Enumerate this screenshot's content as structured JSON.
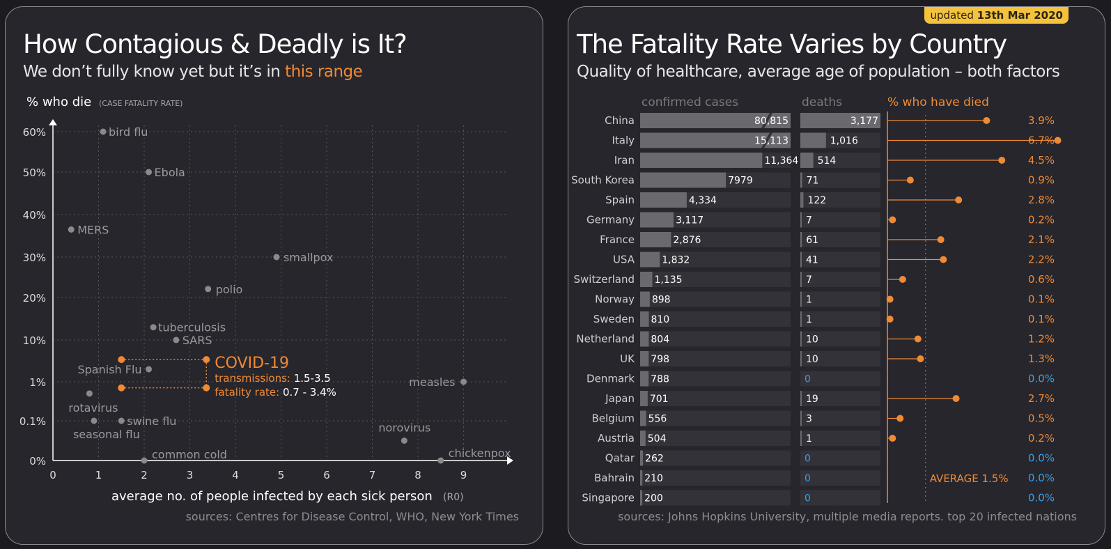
{
  "left": {
    "title": "How Contagious & Deadly is It?",
    "subtitle_prefix": "We don’t fully know yet but it’s in",
    "subtitle_highlight": "this range",
    "sources": "sources: Centres for Disease Control, WHO, New York Times"
  },
  "right": {
    "title": "The Fatality Rate Varies by Country",
    "subtitle": "Quality of healthcare, average age of population – both factors",
    "updated_prefix": "updated",
    "updated_date": "13th Mar 2020",
    "sources": "sources: Johns Hopkins University, multiple media reports. top 20 infected nations"
  },
  "colors": {
    "accent": "#ef8a35",
    "point": "#8a8a8a",
    "bar": "#6a6a6e",
    "bar_track": "#333238",
    "zero": "#3aa0e8",
    "grid": "#55555a"
  },
  "chart_data": [
    {
      "type": "scatter",
      "ylabel": "% who die",
      "ylabel_note": "(CASE FATALITY RATE)",
      "xlabel": "average no. of people infected by each sick person",
      "xlabel_note": "(R0)",
      "xlim": [
        0,
        10
      ],
      "x_ticks": [
        "0",
        "1",
        "2",
        "3",
        "4",
        "5",
        "6",
        "7",
        "8",
        "9"
      ],
      "y_ticks": [
        "0%",
        "0.1%",
        "1%",
        "10%",
        "20%",
        "30%",
        "40%",
        "50%",
        "60%"
      ],
      "grid": true,
      "points": [
        {
          "label": "bird flu",
          "x": 1.1,
          "y": "60%"
        },
        {
          "label": "Ebola",
          "x": 2.1,
          "y": "50%"
        },
        {
          "label": "MERS",
          "x": 0.4,
          "y": "36%"
        },
        {
          "label": "smallpox",
          "x": 4.9,
          "y": "30%"
        },
        {
          "label": "polio",
          "x": 3.4,
          "y": "22%"
        },
        {
          "label": "tuberculosis",
          "x": 2.2,
          "y": "13%"
        },
        {
          "label": "SARS",
          "x": 2.7,
          "y": "10%"
        },
        {
          "label": "Spanish Flu",
          "x": 2.1,
          "y": "2%"
        },
        {
          "label": "measles",
          "x": 9.0,
          "y": "1%"
        },
        {
          "label": "rotavirus",
          "x": 0.8,
          "y": "0.5%"
        },
        {
          "label": "seasonal flu",
          "x": 0.9,
          "y": "0.1%"
        },
        {
          "label": "swine flu",
          "x": 1.5,
          "y": "0.1%"
        },
        {
          "label": "norovirus",
          "x": 7.7,
          "y": "0.05%"
        },
        {
          "label": "common cold",
          "x": 2.0,
          "y": "0%"
        },
        {
          "label": "chickenpox",
          "x": 8.5,
          "y": "0%"
        }
      ],
      "covid": {
        "label": "COVID-19",
        "transmissions_label": "transmissions:",
        "transmissions": "1.5-3.5",
        "fatality_label": "fatality rate:",
        "fatality": "0.7 - 3.4%",
        "x_range": [
          1.5,
          3.5
        ],
        "y_range": [
          "0.7%",
          "3.4%"
        ]
      }
    },
    {
      "type": "bar",
      "columns": {
        "cases": "confirmed cases",
        "deaths": "deaths",
        "rate": "% who have died"
      },
      "average_label": "AVERAGE 1.5%",
      "average": 1.5,
      "rows": [
        {
          "country": "China",
          "cases": 80815,
          "cases_label": "80,815",
          "deaths": 3177,
          "deaths_label": "3,177",
          "rate": 3.9,
          "rate_label": "3.9%"
        },
        {
          "country": "Italy",
          "cases": 15113,
          "cases_label": "15,113",
          "deaths": 1016,
          "deaths_label": "1,016",
          "rate": 6.7,
          "rate_label": "6.7%"
        },
        {
          "country": "Iran",
          "cases": 11364,
          "cases_label": "11,364",
          "deaths": 514,
          "deaths_label": "514",
          "rate": 4.5,
          "rate_label": "4.5%"
        },
        {
          "country": "South Korea",
          "cases": 7979,
          "cases_label": "7979",
          "deaths": 71,
          "deaths_label": "71",
          "rate": 0.9,
          "rate_label": "0.9%"
        },
        {
          "country": "Spain",
          "cases": 4334,
          "cases_label": "4,334",
          "deaths": 122,
          "deaths_label": "122",
          "rate": 2.8,
          "rate_label": "2.8%"
        },
        {
          "country": "Germany",
          "cases": 3117,
          "cases_label": "3,117",
          "deaths": 7,
          "deaths_label": "7",
          "rate": 0.2,
          "rate_label": "0.2%"
        },
        {
          "country": "France",
          "cases": 2876,
          "cases_label": "2,876",
          "deaths": 61,
          "deaths_label": "61",
          "rate": 2.1,
          "rate_label": "2.1%"
        },
        {
          "country": "USA",
          "cases": 1832,
          "cases_label": "1,832",
          "deaths": 41,
          "deaths_label": "41",
          "rate": 2.2,
          "rate_label": "2.2%"
        },
        {
          "country": "Switzerland",
          "cases": 1135,
          "cases_label": "1,135",
          "deaths": 7,
          "deaths_label": "7",
          "rate": 0.6,
          "rate_label": "0.6%"
        },
        {
          "country": "Norway",
          "cases": 898,
          "cases_label": "898",
          "deaths": 1,
          "deaths_label": "1",
          "rate": 0.1,
          "rate_label": "0.1%"
        },
        {
          "country": "Sweden",
          "cases": 810,
          "cases_label": "810",
          "deaths": 1,
          "deaths_label": "1",
          "rate": 0.1,
          "rate_label": "0.1%"
        },
        {
          "country": "Netherland",
          "cases": 804,
          "cases_label": "804",
          "deaths": 10,
          "deaths_label": "10",
          "rate": 1.2,
          "rate_label": "1.2%"
        },
        {
          "country": "UK",
          "cases": 798,
          "cases_label": "798",
          "deaths": 10,
          "deaths_label": "10",
          "rate": 1.3,
          "rate_label": "1.3%"
        },
        {
          "country": "Denmark",
          "cases": 788,
          "cases_label": "788",
          "deaths": 0,
          "deaths_label": "0",
          "rate": 0.0,
          "rate_label": "0.0%"
        },
        {
          "country": "Japan",
          "cases": 701,
          "cases_label": "701",
          "deaths": 19,
          "deaths_label": "19",
          "rate": 2.7,
          "rate_label": "2.7%"
        },
        {
          "country": "Belgium",
          "cases": 556,
          "cases_label": "556",
          "deaths": 3,
          "deaths_label": "3",
          "rate": 0.5,
          "rate_label": "0.5%"
        },
        {
          "country": "Austria",
          "cases": 504,
          "cases_label": "504",
          "deaths": 1,
          "deaths_label": "1",
          "rate": 0.2,
          "rate_label": "0.2%"
        },
        {
          "country": "Qatar",
          "cases": 262,
          "cases_label": "262",
          "deaths": 0,
          "deaths_label": "0",
          "rate": 0.0,
          "rate_label": "0.0%"
        },
        {
          "country": "Bahrain",
          "cases": 210,
          "cases_label": "210",
          "deaths": 0,
          "deaths_label": "0",
          "rate": 0.0,
          "rate_label": "0.0%"
        },
        {
          "country": "Singapore",
          "cases": 200,
          "cases_label": "200",
          "deaths": 0,
          "deaths_label": "0",
          "rate": 0.0,
          "rate_label": "0.0%"
        }
      ]
    }
  ]
}
